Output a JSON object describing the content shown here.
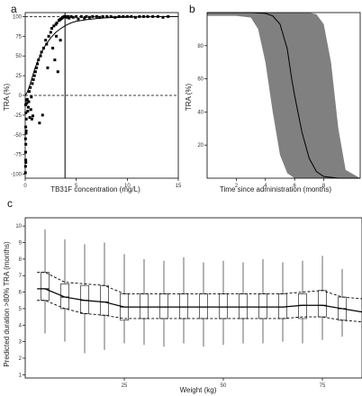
{
  "chart_data": [
    {
      "panel": "a",
      "type": "scatter",
      "xlabel": "TB31F concentration (mg/L)",
      "ylabel": "TRA (%)",
      "xlim": [
        0,
        15
      ],
      "ylim": [
        -105,
        105
      ],
      "x_ticks": [
        0,
        5,
        10,
        15
      ],
      "y_ticks": [
        -100,
        -75,
        -50,
        -25,
        0,
        25,
        50,
        75,
        100
      ],
      "x_tick_labels": [
        "0",
        "5",
        "10",
        "15"
      ],
      "y_tick_labels": [
        "-100",
        "-75",
        "-50",
        "-25",
        "0",
        "25",
        "50",
        "75",
        "100"
      ],
      "reference_lines": {
        "h": [
          0,
          100
        ],
        "v": [
          3.9
        ]
      },
      "fitted_curve": {
        "x": [
          0,
          0.2,
          0.5,
          0.8,
          1,
          1.5,
          2,
          2.5,
          3,
          3.5,
          4,
          4.5,
          5,
          6,
          7,
          8,
          10,
          12,
          15
        ],
        "y": [
          0,
          4,
          15,
          28,
          36,
          52,
          64,
          73,
          80,
          85,
          89,
          92,
          94,
          96,
          97.5,
          98.5,
          99.3,
          99.7,
          100
        ]
      },
      "points": {
        "x": [
          0.02,
          0.03,
          0.05,
          0.04,
          0.06,
          0.03,
          0.08,
          0.05,
          0.1,
          0.07,
          0.04,
          0.12,
          0.09,
          0.06,
          0.15,
          0.2,
          0.25,
          0.3,
          0.35,
          0.4,
          0.5,
          0.6,
          0.7,
          0.8,
          0.9,
          1.0,
          1.1,
          1.2,
          1.3,
          1.5,
          1.6,
          1.8,
          2.0,
          2.1,
          2.3,
          2.5,
          2.6,
          2.8,
          3.0,
          3.1,
          3.3,
          3.4,
          3.5,
          3.6,
          3.7,
          3.8,
          3.9,
          4.0,
          4.1,
          4.2,
          4.3,
          4.5,
          4.7,
          5.0,
          5.2,
          5.5,
          5.8,
          6.0,
          6.3,
          6.6,
          7.0,
          7.3,
          7.6,
          8.0,
          8.4,
          8.8,
          9.2,
          9.6,
          10.0,
          10.4,
          10.8,
          11.2,
          11.6,
          12.0,
          12.5,
          13.0,
          13.5,
          14.0,
          2.2,
          1.7,
          1.4,
          2.7,
          3.2,
          2.9,
          0.45,
          0.55,
          0.65,
          0.75,
          3.05,
          3.45
        ],
        "y": [
          -98,
          -90,
          -82,
          -72,
          -62,
          -55,
          -48,
          -40,
          -30,
          -22,
          -12,
          -6,
          -45,
          -85,
          -10,
          -5,
          -20,
          -15,
          -8,
          5,
          10,
          -2,
          15,
          20,
          25,
          30,
          35,
          40,
          45,
          50,
          55,
          60,
          70,
          65,
          75,
          80,
          85,
          88,
          90,
          92,
          95,
          96,
          97,
          98,
          99,
          100,
          100,
          100,
          99,
          100,
          98,
          100,
          99,
          100,
          97,
          100,
          98,
          100,
          99,
          100,
          100,
          99,
          100,
          100,
          100,
          99,
          100,
          100,
          100,
          100,
          99,
          100,
          100,
          100,
          100,
          100,
          99,
          100,
          35,
          -25,
          -35,
          60,
          30,
          45,
          -28,
          -18,
          -30,
          -26,
          75,
          70
        ]
      }
    },
    {
      "panel": "b",
      "type": "area",
      "xlabel": "Time since administration (months)",
      "ylabel": "TRA (%)",
      "xlim": [
        0,
        10.5
      ],
      "ylim": [
        0,
        100
      ],
      "x_ticks": [
        2,
        4,
        6,
        8
      ],
      "y_ticks": [
        20,
        40,
        60,
        80
      ],
      "x_tick_labels": [
        "2",
        "4",
        "6",
        "8"
      ],
      "y_tick_labels": [
        "20",
        "40",
        "60",
        "80"
      ],
      "band": {
        "x": [
          0,
          2,
          3,
          3.5,
          4,
          4.5,
          5,
          5.5,
          6,
          7,
          7.5,
          8,
          8.5,
          9,
          9.5,
          10.5
        ],
        "lower": [
          98,
          98,
          97,
          90,
          70,
          40,
          14,
          3,
          0,
          0,
          0,
          0,
          0,
          0,
          0,
          0
        ],
        "upper": [
          100,
          100,
          100,
          100,
          100,
          100,
          100,
          100,
          100,
          100,
          99,
          93,
          70,
          30,
          5,
          0
        ]
      },
      "median": {
        "x": [
          0,
          2,
          3,
          4,
          4.5,
          5,
          5.5,
          5.8,
          6,
          6.5,
          7,
          7.5,
          8,
          9,
          10.5
        ],
        "y": [
          100,
          100,
          100,
          99.5,
          98,
          93,
          78,
          60,
          50,
          28,
          12,
          4,
          1,
          0,
          0
        ]
      }
    },
    {
      "panel": "c",
      "type": "box",
      "xlabel": "Weight (kg)",
      "ylabel": "Predicted duration >80% TRA (months)",
      "xlim": [
        0,
        85
      ],
      "ylim": [
        0.8,
        10.5
      ],
      "x_ticks": [
        25,
        50,
        75
      ],
      "y_ticks": [
        1,
        2,
        3,
        4,
        5,
        6,
        7,
        8,
        9,
        10
      ],
      "x_tick_labels": [
        "25",
        "50",
        "75"
      ],
      "y_tick_labels": [
        "1",
        "2",
        "3",
        "4",
        "5",
        "6",
        "7",
        "8",
        "9",
        "10"
      ],
      "categories": [
        5,
        10,
        15,
        20,
        25,
        30,
        35,
        40,
        45,
        50,
        55,
        60,
        65,
        70,
        75,
        80
      ],
      "boxes": [
        {
          "min": 3.5,
          "q1": 5.5,
          "median": 6.2,
          "q3": 7.2,
          "max": 9.8
        },
        {
          "min": 3.0,
          "q1": 5.0,
          "median": 5.7,
          "q3": 6.5,
          "max": 9.2
        },
        {
          "min": 2.3,
          "q1": 4.7,
          "median": 5.5,
          "q3": 6.4,
          "max": 8.9
        },
        {
          "min": 2.5,
          "q1": 4.6,
          "median": 5.4,
          "q3": 6.4,
          "max": 9.0
        },
        {
          "min": 2.9,
          "q1": 4.3,
          "median": 5.1,
          "q3": 5.9,
          "max": 8.3
        },
        {
          "min": 2.8,
          "q1": 4.4,
          "median": 5.1,
          "q3": 5.9,
          "max": 8.0
        },
        {
          "min": 2.7,
          "q1": 4.4,
          "median": 5.1,
          "q3": 5.9,
          "max": 7.9
        },
        {
          "min": 2.9,
          "q1": 4.4,
          "median": 5.1,
          "q3": 5.9,
          "max": 8.1
        },
        {
          "min": 2.7,
          "q1": 4.4,
          "median": 5.1,
          "q3": 5.9,
          "max": 7.8
        },
        {
          "min": 2.8,
          "q1": 4.4,
          "median": 5.1,
          "q3": 5.9,
          "max": 7.9
        },
        {
          "min": 2.9,
          "q1": 4.4,
          "median": 5.1,
          "q3": 5.9,
          "max": 7.8
        },
        {
          "min": 2.9,
          "q1": 4.4,
          "median": 5.1,
          "q3": 5.9,
          "max": 8.0
        },
        {
          "min": 3.0,
          "q1": 4.4,
          "median": 5.1,
          "q3": 5.9,
          "max": 7.8
        },
        {
          "min": 2.9,
          "q1": 4.4,
          "median": 5.2,
          "q3": 5.9,
          "max": 7.9
        },
        {
          "min": 3.1,
          "q1": 4.5,
          "median": 5.2,
          "q3": 6.1,
          "max": 8.2
        },
        {
          "min": 3.3,
          "q1": 4.3,
          "median": 5.0,
          "q3": 5.7,
          "max": 7.4
        }
      ],
      "ci_upper": [
        7.2,
        6.6,
        6.5,
        6.4,
        5.9,
        5.9,
        5.9,
        5.9,
        5.9,
        5.9,
        5.9,
        5.9,
        5.9,
        6.0,
        6.1,
        5.7
      ],
      "ci_lower": [
        5.5,
        5.0,
        4.7,
        4.6,
        4.4,
        4.4,
        4.4,
        4.4,
        4.4,
        4.4,
        4.4,
        4.4,
        4.4,
        4.5,
        4.5,
        4.3
      ]
    }
  ],
  "panels": {
    "a": {
      "letter": "a"
    },
    "b": {
      "letter": "b"
    },
    "c": {
      "letter": "c"
    }
  },
  "colors": {
    "band": "#808080",
    "line": "#000000",
    "axis": "#000000"
  }
}
